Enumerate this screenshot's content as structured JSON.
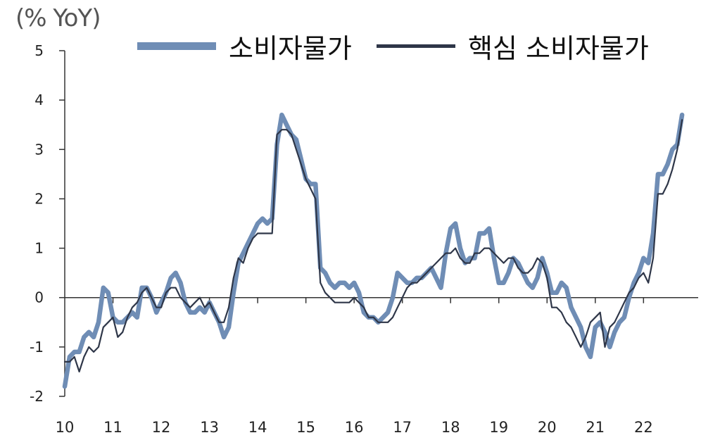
{
  "chart_data": {
    "type": "line",
    "ylabel": "(% YoY)",
    "ylim": [
      -2,
      5
    ],
    "yticks": [
      "-2",
      "-1",
      "0",
      "1",
      "2",
      "3",
      "4",
      "5"
    ],
    "xlabels": [
      "10",
      "11",
      "12",
      "13",
      "14",
      "15",
      "16",
      "17",
      "18",
      "19",
      "20",
      "21",
      "22"
    ],
    "xrange": [
      2010,
      2022.9
    ],
    "legend_position": "top",
    "grid": false,
    "colors": {
      "cpi": "#6f8db5",
      "core": "#2e3648"
    },
    "series": [
      {
        "name": "소비자물가",
        "x": [
          2010.0,
          2010.1,
          2010.2,
          2010.3,
          2010.4,
          2010.5,
          2010.6,
          2010.7,
          2010.8,
          2010.9,
          2011.0,
          2011.1,
          2011.2,
          2011.3,
          2011.4,
          2011.5,
          2011.6,
          2011.7,
          2011.8,
          2011.9,
          2012.0,
          2012.1,
          2012.2,
          2012.3,
          2012.4,
          2012.5,
          2012.6,
          2012.7,
          2012.8,
          2012.9,
          2013.0,
          2013.1,
          2013.2,
          2013.3,
          2013.4,
          2013.5,
          2013.6,
          2013.7,
          2013.8,
          2013.9,
          2014.0,
          2014.1,
          2014.2,
          2014.3,
          2014.4,
          2014.5,
          2014.6,
          2014.7,
          2014.8,
          2014.9,
          2015.0,
          2015.1,
          2015.2,
          2015.3,
          2015.4,
          2015.5,
          2015.6,
          2015.7,
          2015.8,
          2015.9,
          2016.0,
          2016.1,
          2016.2,
          2016.3,
          2016.4,
          2016.5,
          2016.6,
          2016.7,
          2016.8,
          2016.9,
          2017.0,
          2017.1,
          2017.2,
          2017.3,
          2017.4,
          2017.5,
          2017.6,
          2017.7,
          2017.8,
          2017.9,
          2018.0,
          2018.1,
          2018.2,
          2018.3,
          2018.4,
          2018.5,
          2018.6,
          2018.7,
          2018.8,
          2018.9,
          2019.0,
          2019.1,
          2019.2,
          2019.3,
          2019.4,
          2019.5,
          2019.6,
          2019.7,
          2019.8,
          2019.9,
          2020.0,
          2020.1,
          2020.2,
          2020.3,
          2020.4,
          2020.5,
          2020.6,
          2020.7,
          2020.8,
          2020.9,
          2021.0,
          2021.1,
          2021.2,
          2021.3,
          2021.4,
          2021.5,
          2021.6,
          2021.7,
          2021.8,
          2021.9,
          2022.0,
          2022.1,
          2022.2,
          2022.3,
          2022.4,
          2022.5,
          2022.6,
          2022.7,
          2022.8
        ],
        "values": [
          -1.8,
          -1.2,
          -1.1,
          -1.1,
          -0.8,
          -0.7,
          -0.8,
          -0.5,
          0.2,
          0.1,
          -0.4,
          -0.5,
          -0.5,
          -0.4,
          -0.3,
          -0.4,
          0.2,
          0.2,
          0.0,
          -0.3,
          -0.1,
          0.1,
          0.4,
          0.5,
          0.3,
          -0.1,
          -0.3,
          -0.3,
          -0.2,
          -0.3,
          -0.1,
          -0.3,
          -0.5,
          -0.8,
          -0.6,
          0.1,
          0.7,
          0.9,
          1.1,
          1.3,
          1.5,
          1.6,
          1.5,
          1.6,
          3.1,
          3.7,
          3.5,
          3.3,
          3.2,
          2.8,
          2.4,
          2.3,
          2.3,
          0.6,
          0.5,
          0.3,
          0.2,
          0.3,
          0.3,
          0.2,
          0.3,
          0.1,
          -0.3,
          -0.4,
          -0.4,
          -0.5,
          -0.4,
          -0.3,
          0.0,
          0.5,
          0.4,
          0.3,
          0.3,
          0.4,
          0.4,
          0.5,
          0.6,
          0.4,
          0.2,
          0.9,
          1.4,
          1.5,
          1.0,
          0.7,
          0.8,
          0.8,
          1.3,
          1.3,
          1.4,
          0.8,
          0.3,
          0.3,
          0.5,
          0.8,
          0.7,
          0.5,
          0.3,
          0.2,
          0.4,
          0.8,
          0.5,
          0.1,
          0.1,
          0.3,
          0.2,
          -0.2,
          -0.4,
          -0.6,
          -1.0,
          -1.2,
          -0.6,
          -0.5,
          -0.7,
          -1.0,
          -0.7,
          -0.5,
          -0.4,
          0.0,
          0.3,
          0.5,
          0.8,
          0.7,
          1.3,
          2.5,
          2.5,
          2.7,
          3.0,
          3.1,
          3.7
        ]
      },
      {
        "name": "핵심 소비자물가",
        "x": [
          2010.0,
          2010.1,
          2010.2,
          2010.3,
          2010.4,
          2010.5,
          2010.6,
          2010.7,
          2010.8,
          2010.9,
          2011.0,
          2011.1,
          2011.2,
          2011.3,
          2011.4,
          2011.5,
          2011.6,
          2011.7,
          2011.8,
          2011.9,
          2012.0,
          2012.1,
          2012.2,
          2012.3,
          2012.4,
          2012.5,
          2012.6,
          2012.7,
          2012.8,
          2012.9,
          2013.0,
          2013.1,
          2013.2,
          2013.3,
          2013.4,
          2013.5,
          2013.6,
          2013.7,
          2013.8,
          2013.9,
          2014.0,
          2014.1,
          2014.2,
          2014.3,
          2014.4,
          2014.5,
          2014.6,
          2014.7,
          2014.8,
          2014.9,
          2015.0,
          2015.1,
          2015.2,
          2015.3,
          2015.4,
          2015.5,
          2015.6,
          2015.7,
          2015.8,
          2015.9,
          2016.0,
          2016.1,
          2016.2,
          2016.3,
          2016.4,
          2016.5,
          2016.6,
          2016.7,
          2016.8,
          2016.9,
          2017.0,
          2017.1,
          2017.2,
          2017.3,
          2017.4,
          2017.5,
          2017.6,
          2017.7,
          2017.8,
          2017.9,
          2018.0,
          2018.1,
          2018.2,
          2018.3,
          2018.4,
          2018.5,
          2018.6,
          2018.7,
          2018.8,
          2018.9,
          2019.0,
          2019.1,
          2019.2,
          2019.3,
          2019.4,
          2019.5,
          2019.6,
          2019.7,
          2019.8,
          2019.9,
          2020.0,
          2020.1,
          2020.2,
          2020.3,
          2020.4,
          2020.5,
          2020.6,
          2020.7,
          2020.8,
          2020.9,
          2021.0,
          2021.1,
          2021.2,
          2021.3,
          2021.4,
          2021.5,
          2021.6,
          2021.7,
          2021.8,
          2021.9,
          2022.0,
          2022.1,
          2022.2,
          2022.3,
          2022.4,
          2022.5,
          2022.6,
          2022.7,
          2022.8
        ],
        "values": [
          -1.3,
          -1.3,
          -1.2,
          -1.5,
          -1.2,
          -1.0,
          -1.1,
          -1.0,
          -0.6,
          -0.5,
          -0.4,
          -0.8,
          -0.7,
          -0.4,
          -0.2,
          -0.1,
          0.1,
          0.2,
          0.0,
          -0.2,
          -0.2,
          0.1,
          0.2,
          0.2,
          0.0,
          -0.1,
          -0.2,
          -0.1,
          0.0,
          -0.2,
          -0.1,
          -0.3,
          -0.5,
          -0.5,
          -0.2,
          0.4,
          0.8,
          0.7,
          1.0,
          1.2,
          1.3,
          1.3,
          1.3,
          1.3,
          3.3,
          3.4,
          3.4,
          3.3,
          3.0,
          2.7,
          2.4,
          2.2,
          2.0,
          0.3,
          0.1,
          0.0,
          -0.1,
          -0.1,
          -0.1,
          -0.1,
          0.0,
          -0.1,
          -0.2,
          -0.4,
          -0.4,
          -0.5,
          -0.5,
          -0.5,
          -0.4,
          -0.2,
          0.0,
          0.2,
          0.3,
          0.3,
          0.4,
          0.5,
          0.6,
          0.7,
          0.8,
          0.9,
          0.9,
          1.0,
          0.8,
          0.7,
          0.7,
          0.9,
          0.9,
          1.0,
          1.0,
          0.9,
          0.8,
          0.7,
          0.8,
          0.8,
          0.6,
          0.5,
          0.5,
          0.6,
          0.8,
          0.7,
          0.4,
          -0.2,
          -0.2,
          -0.3,
          -0.5,
          -0.6,
          -0.8,
          -1.0,
          -0.8,
          -0.5,
          -0.4,
          -0.3,
          -1.0,
          -0.6,
          -0.5,
          -0.3,
          -0.1,
          0.1,
          0.2,
          0.4,
          0.5,
          0.3,
          0.8,
          2.1,
          2.1,
          2.3,
          2.6,
          3.0,
          3.6
        ]
      }
    ]
  }
}
